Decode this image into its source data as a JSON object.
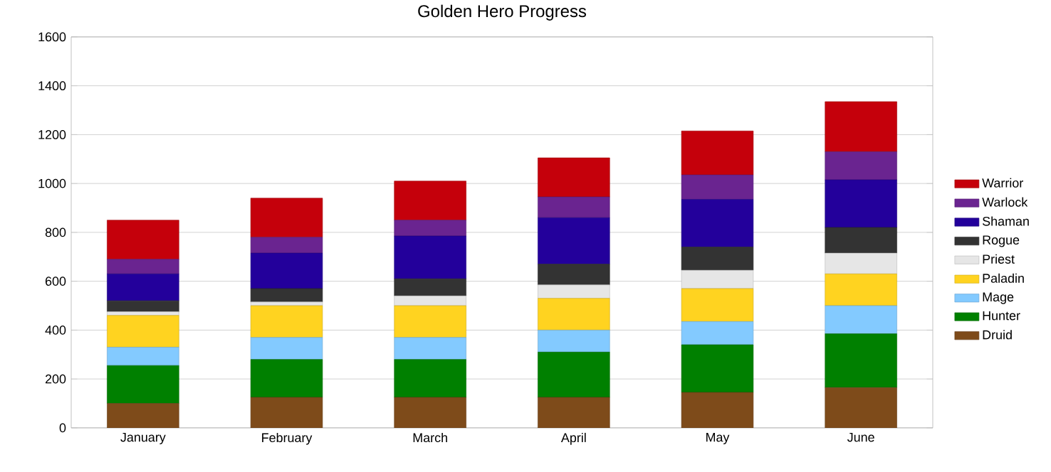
{
  "chart_data": {
    "type": "bar",
    "stacked": true,
    "title": "Golden Hero Progress",
    "categories": [
      "January",
      "February",
      "March",
      "April",
      "May",
      "June"
    ],
    "series": [
      {
        "name": "Druid",
        "color": "#7e4b1a",
        "values": [
          100,
          125,
          125,
          125,
          145,
          165
        ]
      },
      {
        "name": "Hunter",
        "color": "#008000",
        "values": [
          155,
          155,
          155,
          185,
          195,
          220
        ]
      },
      {
        "name": "Mage",
        "color": "#83caff",
        "values": [
          75,
          90,
          90,
          90,
          95,
          115
        ]
      },
      {
        "name": "Paladin",
        "color": "#ffd320",
        "values": [
          130,
          130,
          130,
          130,
          135,
          130
        ]
      },
      {
        "name": "Priest",
        "color": "#e6e6e6",
        "values": [
          15,
          15,
          40,
          55,
          75,
          85
        ]
      },
      {
        "name": "Rogue",
        "color": "#333333",
        "values": [
          45,
          55,
          70,
          85,
          95,
          105
        ]
      },
      {
        "name": "Shaman",
        "color": "#23009b",
        "values": [
          110,
          145,
          175,
          190,
          195,
          195
        ]
      },
      {
        "name": "Warlock",
        "color": "#6a2490",
        "values": [
          60,
          65,
          65,
          85,
          100,
          115
        ]
      },
      {
        "name": "Warrior",
        "color": "#c5000b",
        "values": [
          160,
          160,
          160,
          160,
          180,
          205
        ]
      }
    ],
    "ylim": [
      0,
      1600
    ],
    "yticks": [
      0,
      200,
      400,
      600,
      800,
      1000,
      1200,
      1400,
      1600
    ],
    "grid": "y",
    "legend": "right"
  }
}
